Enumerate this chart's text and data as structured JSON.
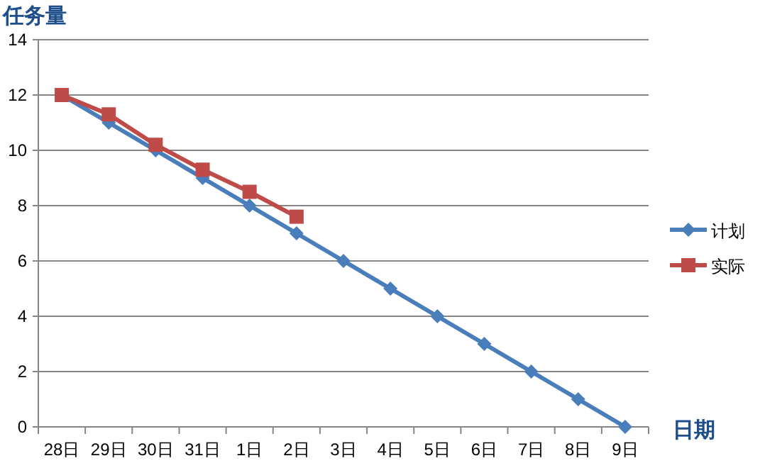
{
  "chart_data": {
    "type": "line",
    "xlabel": "日期",
    "ylabel": "任务量",
    "categories": [
      "28日",
      "29日",
      "30日",
      "31日",
      "1日",
      "2日",
      "3日",
      "4日",
      "5日",
      "6日",
      "7日",
      "8日",
      "9日"
    ],
    "series": [
      {
        "name": "计划",
        "color": "#4a7ebb",
        "marker": "diamond",
        "values": [
          12,
          11,
          10,
          9,
          8,
          7,
          6,
          5,
          4,
          3,
          2,
          1,
          0
        ]
      },
      {
        "name": "实际",
        "color": "#be4b48",
        "marker": "square",
        "values": [
          12,
          11.3,
          10.2,
          9.3,
          8.5,
          7.6,
          null,
          null,
          null,
          null,
          null,
          null,
          null
        ]
      }
    ],
    "ylim": [
      0,
      14
    ],
    "yticks": [
      0,
      2,
      4,
      6,
      8,
      10,
      12,
      14
    ],
    "grid": "y",
    "legend": "right"
  }
}
